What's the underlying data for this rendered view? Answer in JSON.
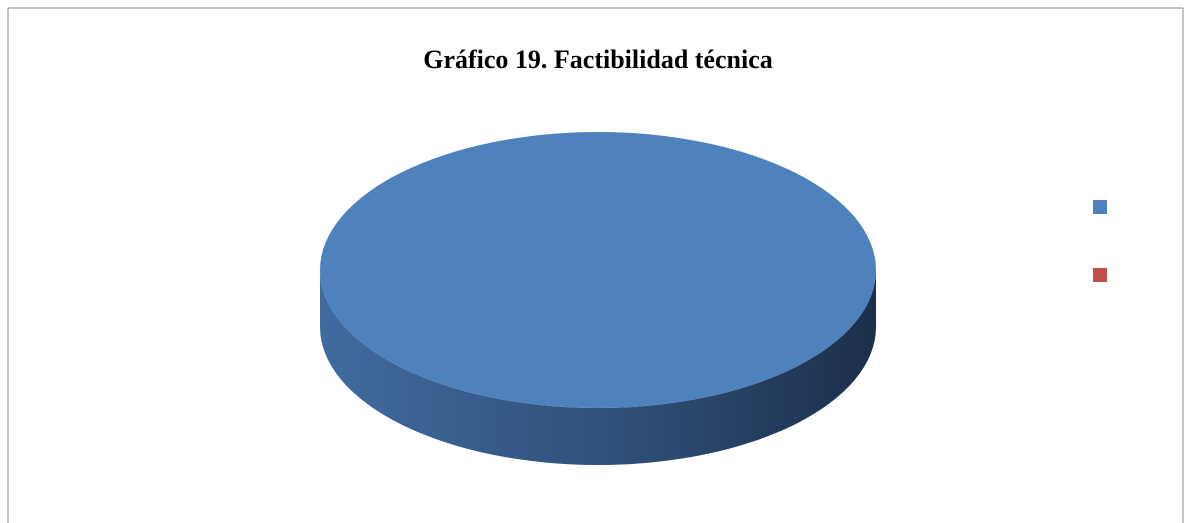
{
  "chart_data": {
    "type": "pie",
    "title": "Gráfico 19. Factibilidad técnica",
    "categories": [
      null,
      null
    ],
    "values": [
      100,
      0
    ],
    "colors": [
      "#4f81bd",
      "#c0504d"
    ],
    "legend": "right"
  }
}
